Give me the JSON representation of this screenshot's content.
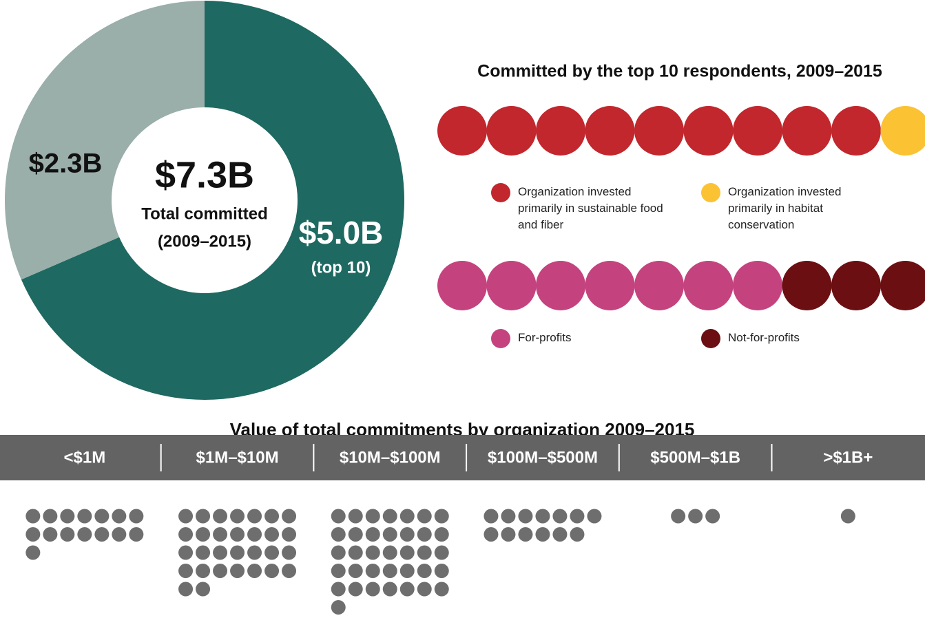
{
  "chart_data": [
    {
      "type": "donut",
      "values": [
        5.0,
        2.3
      ],
      "value_labels": [
        "$5.0B",
        "$2.3B"
      ],
      "colors": [
        "#1e6961",
        "#9aaeaa"
      ],
      "center_value": "$7.3B",
      "center_label": "Total committed",
      "center_sublabel": "(2009–2015)",
      "annotation": "(top 10)"
    },
    {
      "type": "dots",
      "title": "Committed by the top 10 respondents, 2009–2015",
      "series": [
        {
          "name": "Organization invested primarily in sustainable food and fiber",
          "color": "#c1272d",
          "values": [
            9
          ]
        },
        {
          "name": "Organization invested primarily in habitat conservation",
          "color": "#fbc233",
          "values": [
            1
          ]
        }
      ]
    },
    {
      "type": "dots",
      "series": [
        {
          "name": "For-profits",
          "color": "#c4437f",
          "values": [
            7
          ]
        },
        {
          "name": "Not-for-profits",
          "color": "#6b0f12",
          "values": [
            3
          ]
        }
      ]
    },
    {
      "type": "dot-columns",
      "title": "Value of total commitments by organization 2009–2015",
      "categories": [
        "<$1M",
        "$1M–$10M",
        "$10M–$100M",
        "$100M–$500M",
        "$500M–$1B",
        ">$1B+"
      ],
      "values": [
        15,
        30,
        36,
        13,
        3,
        1
      ],
      "color": "#6e6e6e",
      "header_color": "#636363"
    }
  ]
}
